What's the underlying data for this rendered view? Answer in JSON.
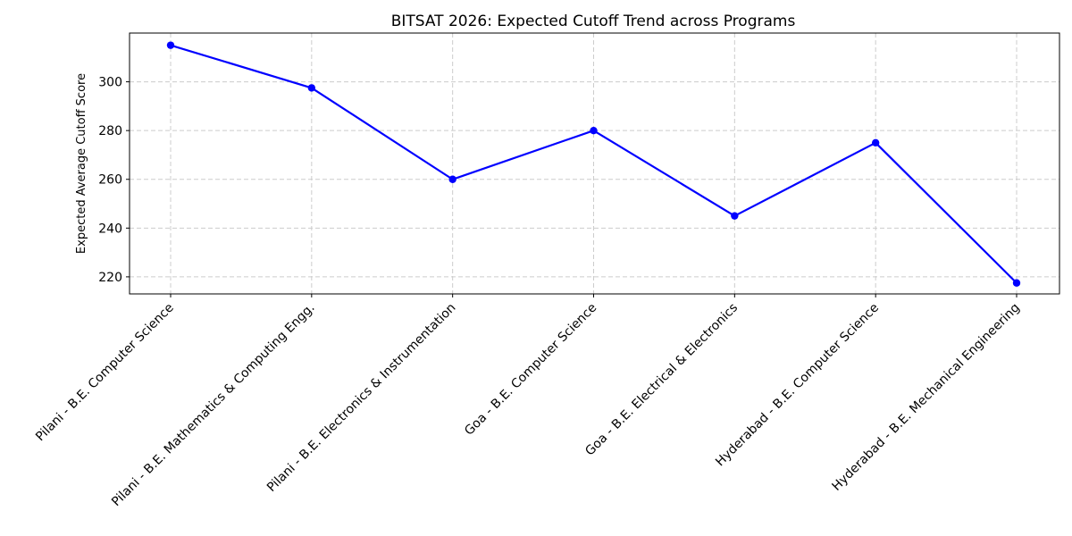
{
  "chart_data": {
    "type": "line",
    "title": "BITSAT 2026: Expected Cutoff Trend across Programs",
    "xlabel": "",
    "ylabel": "Expected Average Cutoff Score",
    "categories": [
      "Pilani - B.E. Computer Science",
      "Pilani - B.E. Mathematics & Computing Engg.",
      "Pilani - B.E. Electronics & Instrumentation",
      "Goa - B.E. Computer Science",
      "Goa - B.E. Electrical & Electronics",
      "Hyderabad - B.E. Computer Science",
      "Hyderabad - B.E. Mechanical Engineering"
    ],
    "series": [
      {
        "values": [
          315,
          297.5,
          260,
          280,
          245,
          275,
          217.5
        ],
        "color": "#0000ff"
      }
    ],
    "yticks": [
      220,
      240,
      260,
      280,
      300
    ],
    "ylim": [
      213,
      320
    ],
    "grid": true,
    "legend": "none",
    "marker": "circle"
  }
}
